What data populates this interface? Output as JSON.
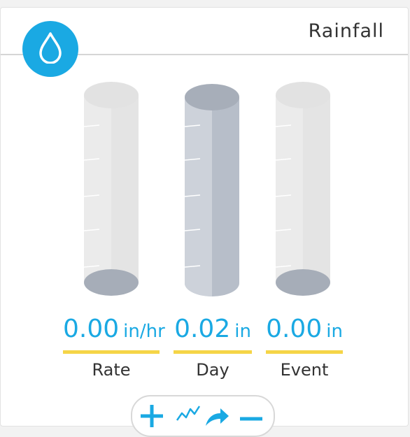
{
  "widget": {
    "title": "Rainfall"
  },
  "readings": [
    {
      "value": "0.00",
      "unit": "in/hr",
      "label": "Rate",
      "fill": 0
    },
    {
      "value": "0.02",
      "unit": "in",
      "label": "Day",
      "fill": 1
    },
    {
      "value": "0.00",
      "unit": "in",
      "label": "Event",
      "fill": 0
    }
  ],
  "colors": {
    "accent": "#1aa9e3",
    "underline": "#f5d547",
    "tube_empty": "#e8e8e8",
    "tube_filled": "#c8cdd6",
    "tube_cap": "#a9b0ba"
  },
  "toolbar": {
    "icons": [
      "plus-icon",
      "trend-icon",
      "share-icon",
      "minus-icon"
    ]
  }
}
